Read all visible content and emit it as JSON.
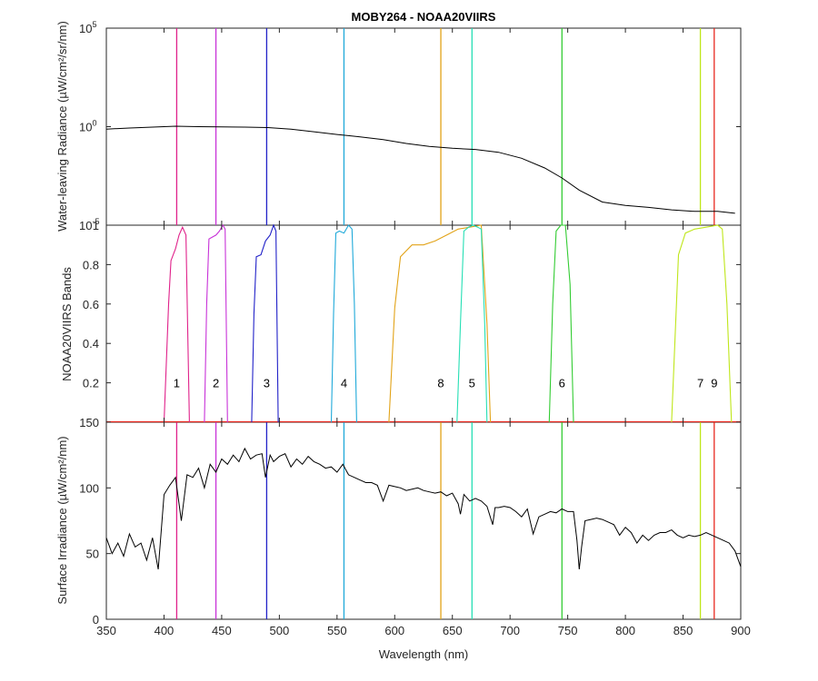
{
  "chart_data": {
    "type": "line",
    "title": "MOBY264 - NOAA20VIIRS",
    "xlabel": "Wavelength (nm)",
    "xlim": [
      350,
      900
    ],
    "xticks": [
      "350",
      "400",
      "450",
      "500",
      "550",
      "600",
      "650",
      "700",
      "750",
      "800",
      "850",
      "900"
    ],
    "bands": [
      {
        "label": "1",
        "center": 411,
        "color": "#e0218a"
      },
      {
        "label": "2",
        "center": 445,
        "color": "#c832d8"
      },
      {
        "label": "3",
        "center": 489,
        "color": "#2121c8"
      },
      {
        "label": "4",
        "center": 556,
        "color": "#1fa9d9"
      },
      {
        "label": "8",
        "center": 640,
        "color": "#e2a318"
      },
      {
        "label": "5",
        "center": 667,
        "color": "#25dfb4"
      },
      {
        "label": "6",
        "center": 745,
        "color": "#33cc33"
      },
      {
        "label": "7",
        "center": 865,
        "color": "#bfe61a"
      },
      {
        "label": "9",
        "center": 877,
        "color": "#e8281e"
      }
    ],
    "panels": [
      {
        "name": "top",
        "ylabel": "Water-leaving Radiance (µW/cm²/sr/nm)",
        "yscale": "log",
        "ylim": [
          1e-05,
          100000.0
        ],
        "ytick_labels": [
          {
            "base": "10",
            "exp": "5"
          },
          {
            "base": "10",
            "exp": "0"
          },
          {
            "base": "10",
            "exp": "-5"
          }
        ],
        "series": [
          {
            "type": "line",
            "color": "#000000",
            "x": [
              350,
              370,
              390,
              410,
              430,
              450,
              470,
              490,
              510,
              530,
              550,
              570,
              590,
              610,
              630,
              650,
              670,
              690,
              710,
              730,
              745,
              760,
              780,
              800,
              820,
              840,
              860,
              880,
              895
            ],
            "y": [
              0.75,
              0.85,
              0.95,
              1.05,
              1.0,
              0.98,
              0.95,
              0.9,
              0.75,
              0.55,
              0.4,
              0.3,
              0.22,
              0.14,
              0.1,
              0.08,
              0.07,
              0.05,
              0.025,
              0.008,
              0.0025,
              0.0006,
              0.00015,
              0.0001,
              8e-05,
              6e-05,
              5e-05,
              5e-05,
              4e-05
            ]
          }
        ]
      },
      {
        "name": "middle",
        "ylabel": "NOAA20VIIRS Bands",
        "ylim": [
          0,
          1
        ],
        "ytick_labels": [
          "0.2",
          "0.4",
          "0.6",
          "0.8",
          "1"
        ],
        "series": [
          {
            "band": "1",
            "x": [
              400,
              402,
              404,
              406,
              410,
              413,
              416,
              419,
              422
            ],
            "y": [
              0,
              0.3,
              0.6,
              0.82,
              0.88,
              0.95,
              0.99,
              0.95,
              0
            ]
          },
          {
            "band": "2",
            "x": [
              435,
              437,
              439,
              442,
              445,
              448,
              451,
              453,
              455
            ],
            "y": [
              0,
              0.6,
              0.93,
              0.94,
              0.95,
              0.97,
              1.0,
              0.98,
              0
            ]
          },
          {
            "band": "3",
            "x": [
              476,
              478,
              480,
              484,
              488,
              492,
              495,
              497,
              499
            ],
            "y": [
              0,
              0.55,
              0.84,
              0.85,
              0.92,
              0.95,
              1.0,
              0.97,
              0
            ]
          },
          {
            "band": "4",
            "x": [
              545,
              547,
              549,
              552,
              556,
              560,
              563,
              565,
              567
            ],
            "y": [
              0,
              0.55,
              0.96,
              0.97,
              0.96,
              1.0,
              0.98,
              0.6,
              0
            ]
          },
          {
            "band": "8",
            "x": [
              595,
              600,
              605,
              615,
              625,
              635,
              645,
              655,
              665,
              675,
              680,
              683
            ],
            "y": [
              0,
              0.58,
              0.84,
              0.9,
              0.9,
              0.92,
              0.95,
              0.98,
              0.99,
              1.0,
              0.5,
              0
            ]
          },
          {
            "band": "5",
            "x": [
              654,
              657,
              660,
              664,
              668,
              672,
              675,
              678,
              680
            ],
            "y": [
              0,
              0.5,
              0.97,
              0.99,
              1.0,
              0.99,
              0.98,
              0.5,
              0
            ]
          },
          {
            "band": "6",
            "x": [
              734,
              737,
              740,
              744,
              748,
              752,
              755
            ],
            "y": [
              0,
              0.6,
              0.97,
              1.0,
              1.0,
              0.7,
              0
            ]
          },
          {
            "band": "7",
            "x": [
              840,
              846,
              852,
              860,
              870,
              880,
              884,
              888,
              892
            ],
            "y": [
              0,
              0.85,
              0.96,
              0.98,
              0.99,
              1.0,
              0.98,
              0.6,
              0
            ]
          }
        ]
      },
      {
        "name": "bottom",
        "ylabel": "Surface Irradiance (µW/cm²/nm)",
        "ylim": [
          0,
          150
        ],
        "ytick_labels": [
          "0",
          "50",
          "100",
          "150"
        ],
        "series": [
          {
            "type": "line",
            "color": "#000000",
            "x": [
              350,
              355,
              360,
              365,
              370,
              375,
              380,
              385,
              390,
              395,
              400,
              405,
              410,
              415,
              420,
              425,
              430,
              435,
              440,
              445,
              450,
              455,
              460,
              465,
              470,
              475,
              480,
              485,
              488,
              492,
              495,
              500,
              505,
              510,
              515,
              520,
              525,
              530,
              535,
              540,
              545,
              550,
              555,
              560,
              565,
              570,
              575,
              580,
              585,
              590,
              595,
              600,
              605,
              610,
              615,
              620,
              625,
              630,
              635,
              640,
              645,
              650,
              655,
              657,
              660,
              665,
              670,
              675,
              680,
              685,
              687,
              690,
              695,
              700,
              705,
              710,
              715,
              720,
              725,
              730,
              735,
              740,
              745,
              750,
              755,
              758,
              760,
              762,
              765,
              770,
              775,
              780,
              785,
              790,
              795,
              800,
              805,
              810,
              815,
              820,
              825,
              830,
              835,
              840,
              845,
              850,
              855,
              860,
              865,
              870,
              875,
              880,
              885,
              890,
              895,
              900
            ],
            "y": [
              62,
              50,
              58,
              48,
              65,
              55,
              58,
              45,
              62,
              38,
              95,
              102,
              108,
              75,
              110,
              108,
              115,
              100,
              118,
              112,
              122,
              118,
              125,
              120,
              130,
              122,
              125,
              126,
              108,
              125,
              120,
              124,
              126,
              116,
              122,
              118,
              124,
              120,
              118,
              115,
              116,
              112,
              118,
              110,
              108,
              106,
              104,
              104,
              102,
              90,
              102,
              101,
              100,
              98,
              99,
              100,
              98,
              97,
              96,
              97,
              94,
              96,
              88,
              80,
              95,
              90,
              92,
              90,
              86,
              72,
              85,
              85,
              86,
              85,
              82,
              78,
              84,
              65,
              78,
              80,
              82,
              81,
              84,
              82,
              82,
              60,
              38,
              55,
              75,
              76,
              77,
              76,
              74,
              72,
              64,
              70,
              66,
              58,
              64,
              60,
              64,
              66,
              66,
              68,
              64,
              62,
              64,
              63,
              64,
              66,
              64,
              62,
              60,
              58,
              52,
              40
            ]
          }
        ]
      }
    ]
  }
}
